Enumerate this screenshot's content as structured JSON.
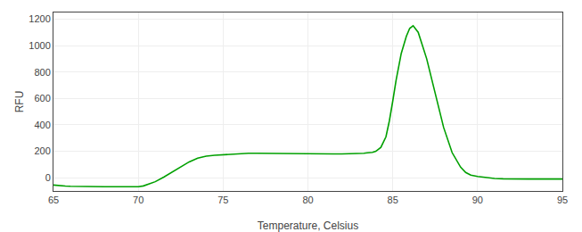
{
  "chart_data": {
    "type": "line",
    "xlabel": "Temperature, Celsius",
    "ylabel": "RFU",
    "x": [
      65.0,
      65.3,
      65.7,
      66.0,
      66.5,
      67.0,
      67.5,
      68.0,
      68.5,
      69.0,
      69.5,
      70.0,
      70.3,
      70.6,
      71.0,
      71.5,
      72.0,
      72.5,
      73.0,
      73.5,
      74.0,
      74.5,
      75.0,
      75.3,
      75.6,
      76.0,
      76.5,
      77.0,
      77.5,
      78.0,
      78.5,
      79.0,
      79.5,
      80.0,
      80.5,
      81.0,
      81.5,
      82.0,
      82.5,
      83.0,
      83.3,
      83.5,
      83.8,
      84.0,
      84.3,
      84.6,
      84.8,
      85.0,
      85.2,
      85.5,
      85.8,
      86.0,
      86.2,
      86.5,
      87.0,
      87.5,
      88.0,
      88.5,
      89.0,
      89.3,
      89.6,
      90.0,
      90.5,
      91.0,
      91.5,
      92.0,
      92.5,
      93.0,
      93.5,
      94.0,
      94.5,
      95.0
    ],
    "values": [
      -55,
      -60,
      -63,
      -65,
      -67,
      -68,
      -68,
      -68,
      -68,
      -68,
      -68,
      -68,
      -62,
      -50,
      -30,
      5,
      45,
      85,
      120,
      148,
      163,
      170,
      175,
      178,
      180,
      183,
      185,
      185,
      184,
      183,
      182,
      181,
      181,
      181,
      180,
      180,
      180,
      180,
      180,
      182,
      185,
      188,
      192,
      200,
      230,
      310,
      430,
      580,
      740,
      940,
      1070,
      1130,
      1150,
      1100,
      900,
      640,
      380,
      190,
      80,
      40,
      20,
      10,
      0,
      -5,
      -8,
      -10,
      -10,
      -10,
      -10,
      -10,
      -10,
      -10
    ],
    "color": "#00a000",
    "xlim": [
      65,
      95
    ],
    "ylim": [
      -100,
      1250
    ],
    "xticks": [
      65,
      70,
      75,
      80,
      85,
      90,
      95
    ],
    "yticks": [
      0,
      200,
      400,
      600,
      800,
      1000,
      1200
    ],
    "grid": true
  }
}
